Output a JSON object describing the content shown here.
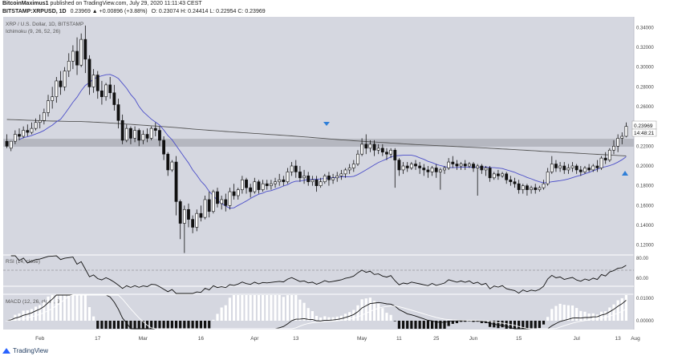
{
  "header": {
    "author": "BitcoinMaximus1",
    "published": "published on TradingView.com, July 29, 2020 11:11:43 CEST",
    "symbol": "BITSTAMP:XRPUSD, 1D",
    "change": "0.23969 ▲ +0.00896 (+3.88%)",
    "ohlc": "O: 0.23074 H: 0.24414 L: 0.22954 C: 0.23969"
  },
  "footer": {
    "brand": "TradingView"
  },
  "panels": {
    "main_title": "XRP / U.S. Dollar, 1D, BITSTAMP",
    "ichimoku_label": "Ichimoku (9, 26, 52, 26)",
    "rsi_label": "RSI (14, close)",
    "macd_label": "MACD (12, 26, close, 9)"
  },
  "colors": {
    "background": "#d5d7e0",
    "candle": "#111111",
    "ma200": "#555555",
    "blue_line": "#4b4ec9",
    "zone": "#a9acb5",
    "marker": "#2f7fd8"
  },
  "chart_data": {
    "type": "candlestick",
    "price_axis": {
      "ticks": [
        "0.34000",
        "0.32000",
        "0.30000",
        "0.28000",
        "0.26000",
        "0.24000",
        "0.22000",
        "0.20000",
        "0.18000",
        "0.16000",
        "0.14000",
        "0.12000"
      ],
      "ylim": [
        0.11,
        0.35
      ]
    },
    "x_ticks": [
      "Feb",
      "17",
      "Mar",
      "16",
      "Apr",
      "13",
      "May",
      "11",
      "25",
      "Jun",
      "15",
      "Jul",
      "13",
      "Aug"
    ],
    "current_price_label": "0.23969",
    "countdown_label": "14:48:21",
    "resistance_zone": [
      0.2195,
      0.2275
    ],
    "candles": [
      [
        0.225,
        0.232,
        0.22,
        0.218
      ],
      [
        0.218,
        0.225,
        0.225,
        0.215
      ],
      [
        0.225,
        0.236,
        0.232,
        0.222
      ],
      [
        0.232,
        0.238,
        0.23,
        0.226
      ],
      [
        0.23,
        0.24,
        0.236,
        0.228
      ],
      [
        0.236,
        0.242,
        0.234,
        0.23
      ],
      [
        0.234,
        0.244,
        0.238,
        0.232
      ],
      [
        0.238,
        0.248,
        0.244,
        0.236
      ],
      [
        0.244,
        0.252,
        0.246,
        0.238
      ],
      [
        0.246,
        0.258,
        0.254,
        0.242
      ],
      [
        0.254,
        0.272,
        0.266,
        0.25
      ],
      [
        0.266,
        0.28,
        0.27,
        0.258
      ],
      [
        0.27,
        0.29,
        0.286,
        0.264
      ],
      [
        0.286,
        0.296,
        0.28,
        0.272
      ],
      [
        0.28,
        0.3,
        0.296,
        0.276
      ],
      [
        0.296,
        0.314,
        0.306,
        0.29
      ],
      [
        0.306,
        0.322,
        0.316,
        0.298
      ],
      [
        0.316,
        0.33,
        0.302,
        0.292
      ],
      [
        0.302,
        0.334,
        0.328,
        0.3
      ],
      [
        0.328,
        0.342,
        0.308,
        0.294
      ],
      [
        0.308,
        0.312,
        0.28,
        0.272
      ],
      [
        0.28,
        0.298,
        0.292,
        0.274
      ],
      [
        0.292,
        0.296,
        0.276,
        0.268
      ],
      [
        0.276,
        0.286,
        0.27,
        0.262
      ],
      [
        0.27,
        0.284,
        0.282,
        0.266
      ],
      [
        0.282,
        0.29,
        0.274,
        0.268
      ],
      [
        0.274,
        0.282,
        0.262,
        0.256
      ],
      [
        0.262,
        0.268,
        0.246,
        0.238
      ],
      [
        0.246,
        0.252,
        0.226,
        0.222
      ],
      [
        0.226,
        0.242,
        0.238,
        0.224
      ],
      [
        0.238,
        0.24,
        0.228,
        0.222
      ],
      [
        0.228,
        0.24,
        0.236,
        0.224
      ],
      [
        0.236,
        0.238,
        0.226,
        0.22
      ],
      [
        0.226,
        0.236,
        0.232,
        0.222
      ],
      [
        0.232,
        0.238,
        0.228,
        0.224
      ],
      [
        0.228,
        0.24,
        0.238,
        0.226
      ],
      [
        0.238,
        0.244,
        0.236,
        0.23
      ],
      [
        0.236,
        0.24,
        0.226,
        0.22
      ],
      [
        0.226,
        0.23,
        0.212,
        0.206
      ],
      [
        0.212,
        0.214,
        0.196,
        0.19
      ],
      [
        0.196,
        0.206,
        0.204,
        0.194
      ],
      [
        0.204,
        0.21,
        0.164,
        0.15
      ],
      [
        0.164,
        0.166,
        0.142,
        0.126
      ],
      [
        0.142,
        0.16,
        0.156,
        0.112
      ],
      [
        0.156,
        0.162,
        0.146,
        0.138
      ],
      [
        0.146,
        0.15,
        0.138,
        0.132
      ],
      [
        0.138,
        0.156,
        0.152,
        0.134
      ],
      [
        0.152,
        0.16,
        0.148,
        0.144
      ],
      [
        0.148,
        0.17,
        0.166,
        0.146
      ],
      [
        0.166,
        0.174,
        0.154,
        0.148
      ],
      [
        0.154,
        0.176,
        0.174,
        0.152
      ],
      [
        0.174,
        0.178,
        0.162,
        0.158
      ],
      [
        0.162,
        0.17,
        0.166,
        0.156
      ],
      [
        0.166,
        0.172,
        0.16,
        0.154
      ],
      [
        0.16,
        0.178,
        0.174,
        0.156
      ],
      [
        0.174,
        0.182,
        0.17,
        0.166
      ],
      [
        0.17,
        0.178,
        0.176,
        0.166
      ],
      [
        0.176,
        0.19,
        0.186,
        0.172
      ],
      [
        0.186,
        0.188,
        0.178,
        0.172
      ],
      [
        0.178,
        0.182,
        0.174,
        0.168
      ],
      [
        0.174,
        0.188,
        0.184,
        0.172
      ],
      [
        0.184,
        0.186,
        0.176,
        0.172
      ],
      [
        0.176,
        0.186,
        0.182,
        0.174
      ],
      [
        0.182,
        0.186,
        0.18,
        0.176
      ],
      [
        0.18,
        0.186,
        0.182,
        0.176
      ],
      [
        0.182,
        0.188,
        0.184,
        0.178
      ],
      [
        0.184,
        0.192,
        0.186,
        0.18
      ],
      [
        0.186,
        0.19,
        0.184,
        0.18
      ],
      [
        0.184,
        0.198,
        0.194,
        0.182
      ],
      [
        0.194,
        0.204,
        0.2,
        0.19
      ],
      [
        0.2,
        0.206,
        0.194,
        0.188
      ],
      [
        0.194,
        0.2,
        0.188,
        0.184
      ],
      [
        0.188,
        0.196,
        0.19,
        0.182
      ],
      [
        0.19,
        0.194,
        0.184,
        0.18
      ],
      [
        0.184,
        0.19,
        0.186,
        0.18
      ],
      [
        0.186,
        0.19,
        0.18,
        0.174
      ],
      [
        0.18,
        0.188,
        0.184,
        0.178
      ],
      [
        0.184,
        0.192,
        0.19,
        0.182
      ],
      [
        0.19,
        0.194,
        0.186,
        0.18
      ],
      [
        0.186,
        0.192,
        0.188,
        0.182
      ],
      [
        0.188,
        0.194,
        0.19,
        0.184
      ],
      [
        0.19,
        0.196,
        0.192,
        0.186
      ],
      [
        0.192,
        0.198,
        0.196,
        0.188
      ],
      [
        0.196,
        0.202,
        0.198,
        0.192
      ],
      [
        0.198,
        0.206,
        0.202,
        0.194
      ],
      [
        0.202,
        0.216,
        0.212,
        0.2
      ],
      [
        0.212,
        0.228,
        0.222,
        0.21
      ],
      [
        0.222,
        0.232,
        0.218,
        0.212
      ],
      [
        0.218,
        0.226,
        0.222,
        0.214
      ],
      [
        0.222,
        0.226,
        0.216,
        0.21
      ],
      [
        0.216,
        0.222,
        0.218,
        0.212
      ],
      [
        0.218,
        0.222,
        0.214,
        0.21
      ],
      [
        0.214,
        0.218,
        0.212,
        0.206
      ],
      [
        0.212,
        0.218,
        0.216,
        0.208
      ],
      [
        0.216,
        0.218,
        0.206,
        0.178
      ],
      [
        0.206,
        0.208,
        0.196,
        0.19
      ],
      [
        0.196,
        0.204,
        0.2,
        0.192
      ],
      [
        0.2,
        0.204,
        0.198,
        0.194
      ],
      [
        0.198,
        0.204,
        0.202,
        0.196
      ],
      [
        0.202,
        0.206,
        0.2,
        0.196
      ],
      [
        0.2,
        0.204,
        0.198,
        0.192
      ],
      [
        0.198,
        0.202,
        0.196,
        0.19
      ],
      [
        0.196,
        0.2,
        0.194,
        0.188
      ],
      [
        0.194,
        0.2,
        0.198,
        0.19
      ],
      [
        0.198,
        0.202,
        0.194,
        0.188
      ],
      [
        0.194,
        0.198,
        0.196,
        0.176
      ],
      [
        0.196,
        0.2,
        0.198,
        0.192
      ],
      [
        0.198,
        0.208,
        0.204,
        0.196
      ],
      [
        0.204,
        0.21,
        0.202,
        0.198
      ],
      [
        0.202,
        0.206,
        0.2,
        0.196
      ],
      [
        0.2,
        0.204,
        0.202,
        0.196
      ],
      [
        0.202,
        0.206,
        0.2,
        0.196
      ],
      [
        0.2,
        0.204,
        0.202,
        0.198
      ],
      [
        0.202,
        0.204,
        0.198,
        0.194
      ],
      [
        0.198,
        0.202,
        0.2,
        0.17
      ],
      [
        0.2,
        0.202,
        0.196,
        0.192
      ],
      [
        0.196,
        0.2,
        0.198,
        0.19
      ],
      [
        0.198,
        0.2,
        0.188,
        0.184
      ],
      [
        0.188,
        0.194,
        0.192,
        0.186
      ],
      [
        0.192,
        0.196,
        0.19,
        0.186
      ],
      [
        0.19,
        0.194,
        0.192,
        0.188
      ],
      [
        0.192,
        0.194,
        0.186,
        0.182
      ],
      [
        0.186,
        0.19,
        0.184,
        0.18
      ],
      [
        0.184,
        0.188,
        0.182,
        0.178
      ],
      [
        0.182,
        0.186,
        0.176,
        0.172
      ],
      [
        0.176,
        0.182,
        0.18,
        0.172
      ],
      [
        0.18,
        0.182,
        0.176,
        0.17
      ],
      [
        0.176,
        0.18,
        0.178,
        0.172
      ],
      [
        0.178,
        0.182,
        0.176,
        0.172
      ],
      [
        0.176,
        0.18,
        0.178,
        0.174
      ],
      [
        0.178,
        0.186,
        0.182,
        0.176
      ],
      [
        0.182,
        0.198,
        0.194,
        0.18
      ],
      [
        0.194,
        0.21,
        0.202,
        0.192
      ],
      [
        0.202,
        0.206,
        0.198,
        0.194
      ],
      [
        0.198,
        0.204,
        0.2,
        0.194
      ],
      [
        0.2,
        0.204,
        0.196,
        0.192
      ],
      [
        0.196,
        0.202,
        0.198,
        0.192
      ],
      [
        0.198,
        0.204,
        0.2,
        0.194
      ],
      [
        0.2,
        0.202,
        0.196,
        0.192
      ],
      [
        0.196,
        0.2,
        0.194,
        0.19
      ],
      [
        0.194,
        0.2,
        0.198,
        0.192
      ],
      [
        0.198,
        0.202,
        0.196,
        0.194
      ],
      [
        0.196,
        0.202,
        0.2,
        0.194
      ],
      [
        0.2,
        0.206,
        0.198,
        0.194
      ],
      [
        0.198,
        0.21,
        0.208,
        0.196
      ],
      [
        0.208,
        0.214,
        0.206,
        0.202
      ],
      [
        0.206,
        0.218,
        0.216,
        0.204
      ],
      [
        0.216,
        0.226,
        0.22,
        0.212
      ],
      [
        0.22,
        0.232,
        0.228,
        0.214
      ],
      [
        0.228,
        0.234,
        0.23,
        0.222
      ],
      [
        0.23,
        0.244,
        0.24,
        0.229
      ]
    ]
  }
}
